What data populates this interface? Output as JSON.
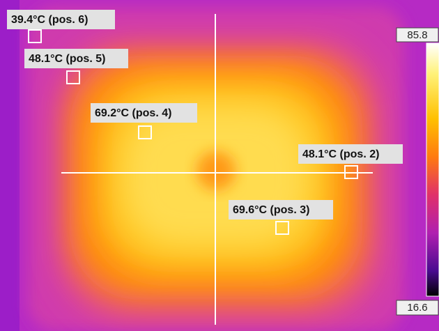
{
  "markers": [
    {
      "label": "39.4°C (pos. 6)"
    },
    {
      "label": "48.1°C (pos. 5)"
    },
    {
      "label": "69.2°C (pos. 4)"
    },
    {
      "label": "48.1°C (pos. 2)"
    },
    {
      "label": "69.6°C (pos. 3)"
    }
  ],
  "scale": {
    "max": "85.8",
    "min": "16.6"
  }
}
